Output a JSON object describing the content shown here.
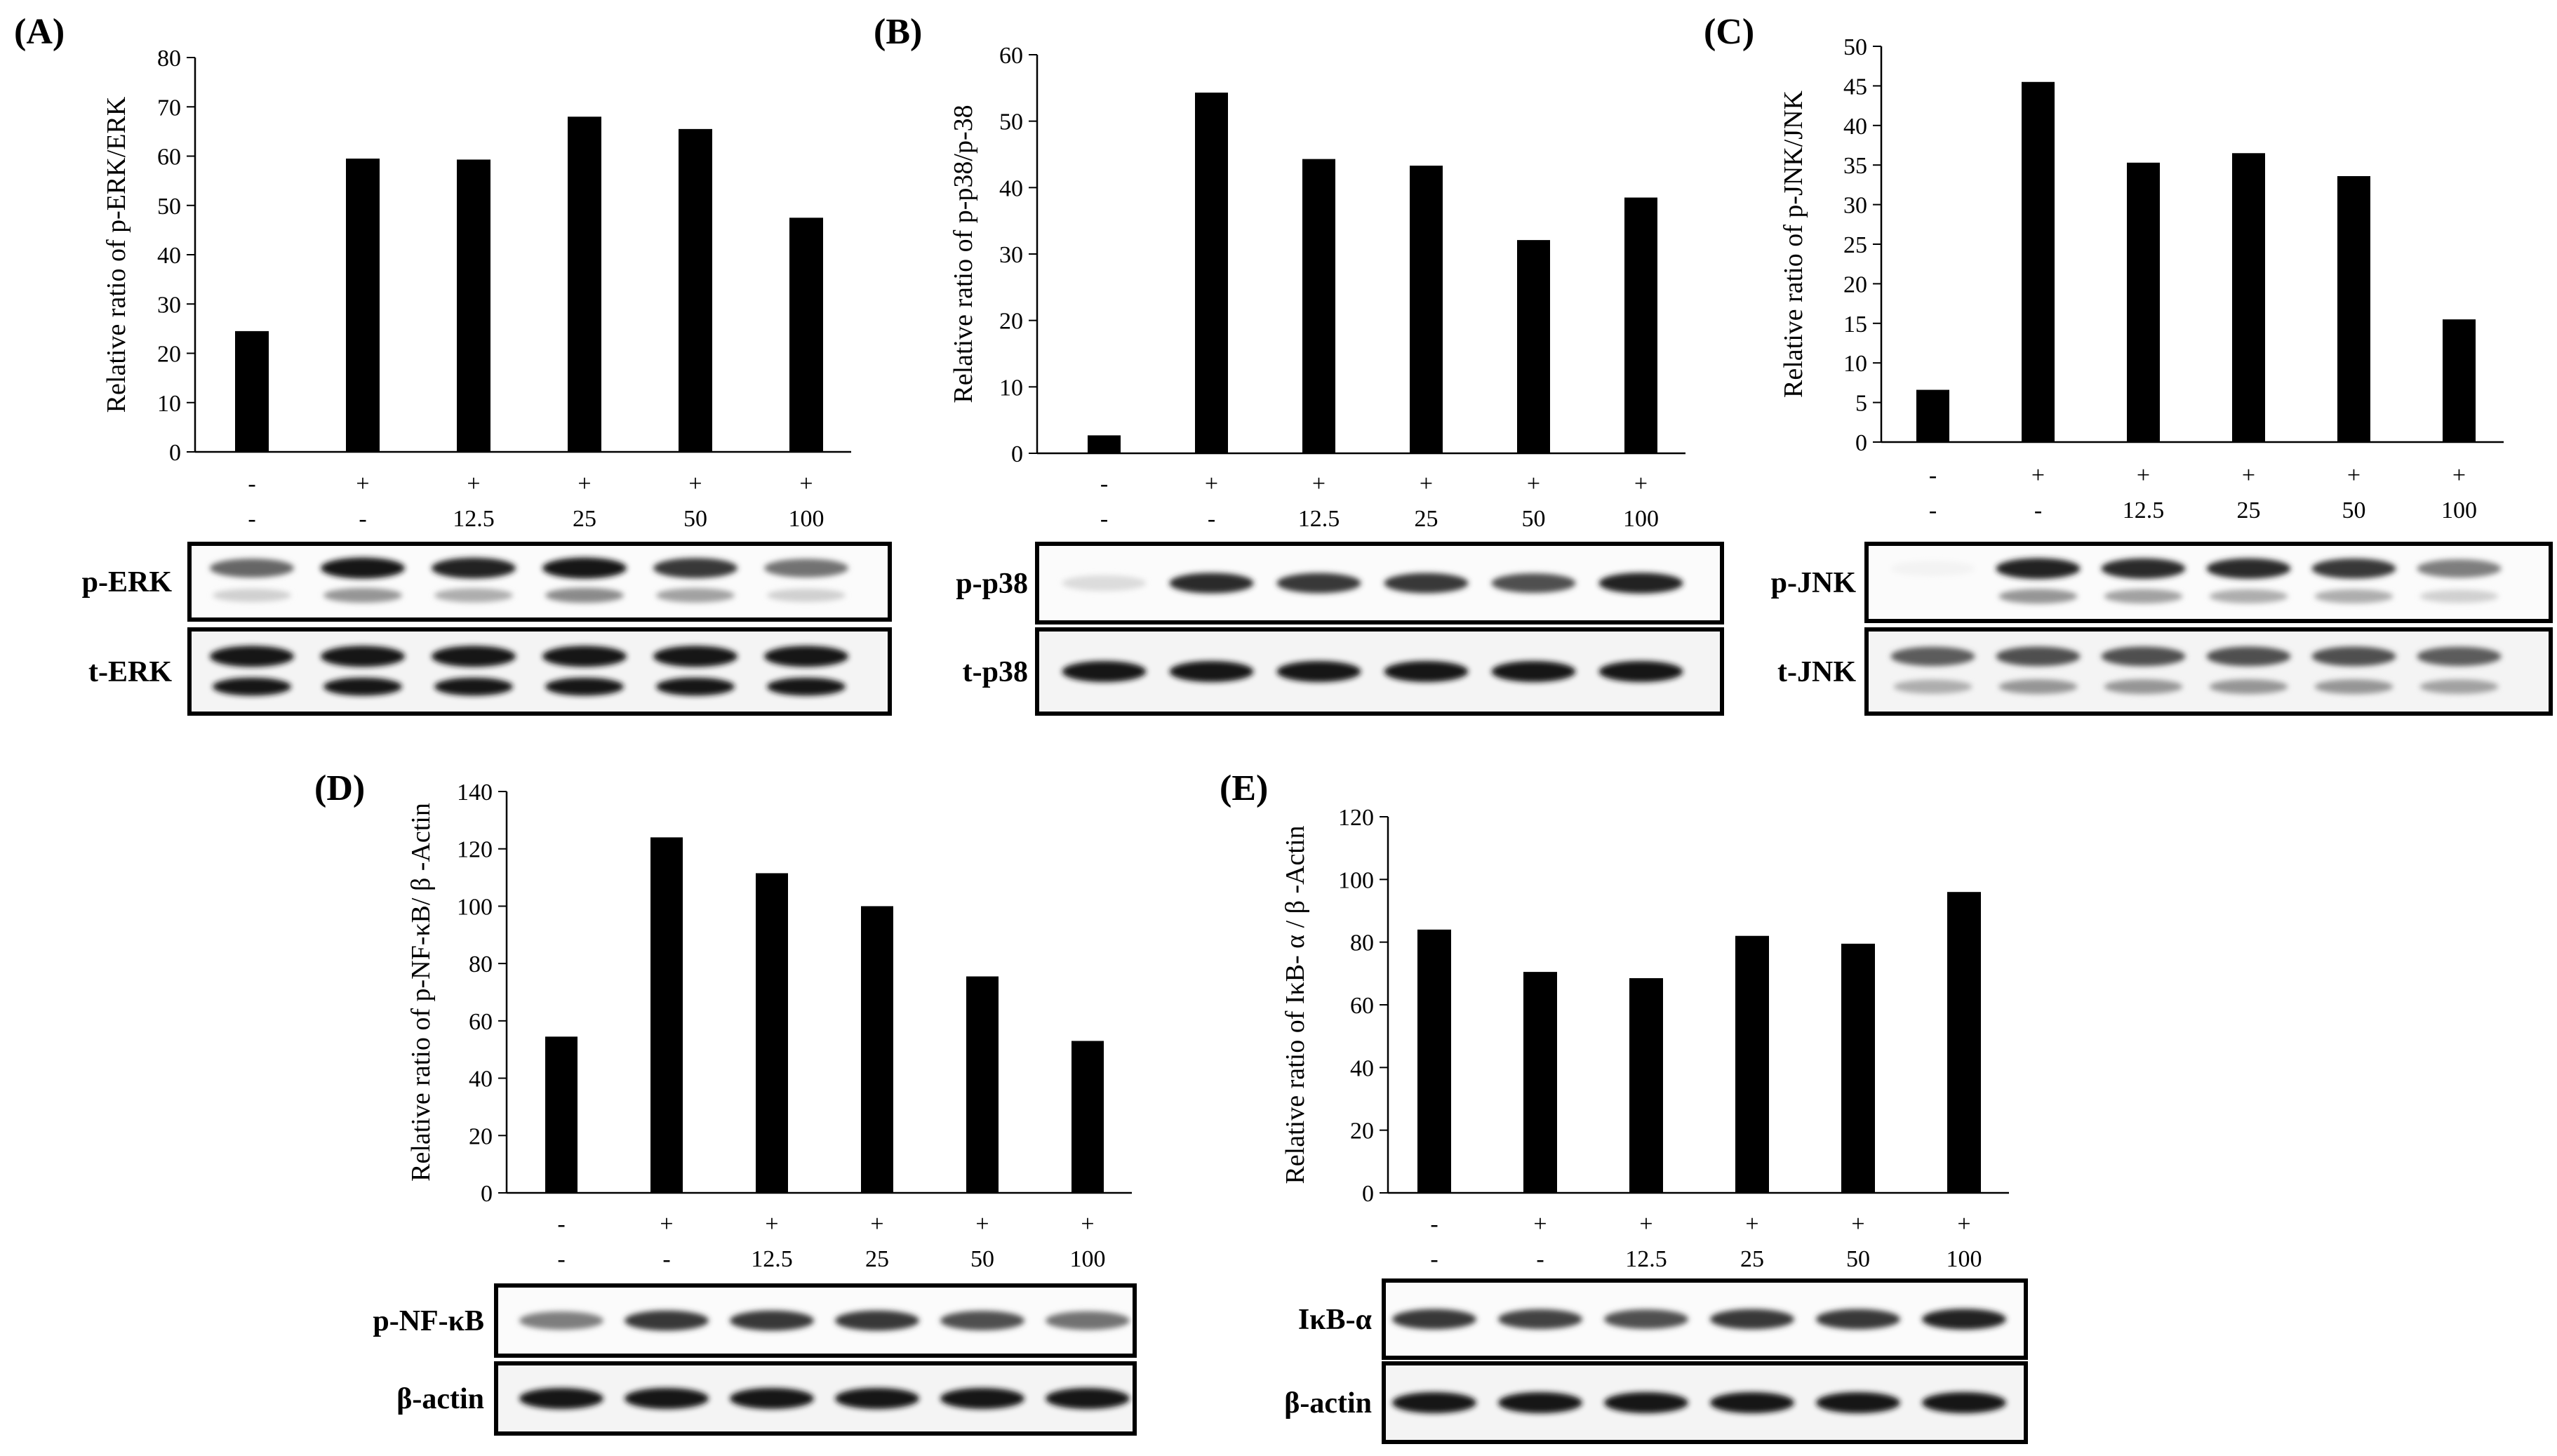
{
  "chart_data": [
    {
      "type": "bar",
      "panel": "(A)",
      "ylabel": "Relative ratio of p-ERK/ERK",
      "ylim": [
        0,
        80
      ],
      "yticks": [
        0,
        10,
        20,
        30,
        40,
        50,
        60,
        70,
        80
      ],
      "row1": [
        "-",
        "+",
        "+",
        "+",
        "+",
        "+"
      ],
      "row2": [
        "-",
        "-",
        "12.5",
        "25",
        "50",
        "100"
      ],
      "values": [
        24.5,
        59.5,
        59.3,
        68,
        65.5,
        47.5
      ],
      "blots": [
        {
          "label": "p-ERK",
          "intensity": [
            0.65,
            1.0,
            0.95,
            1.0,
            0.85,
            0.6
          ],
          "second": [
            0.2,
            0.45,
            0.35,
            0.5,
            0.4,
            0.2
          ]
        },
        {
          "label": "t-ERK",
          "intensity": [
            1,
            1,
            1,
            1,
            1,
            1
          ],
          "second": [
            1,
            1,
            1,
            1,
            1,
            1
          ]
        }
      ]
    },
    {
      "type": "bar",
      "panel": "(B)",
      "ylabel": "Relative ratio of p-p38/p-38",
      "ylim": [
        0,
        60
      ],
      "yticks": [
        0,
        10,
        20,
        30,
        40,
        50,
        60
      ],
      "row1": [
        "-",
        "+",
        "+",
        "+",
        "+",
        "+"
      ],
      "row2": [
        "-",
        "-",
        "12.5",
        "25",
        "50",
        "100"
      ],
      "values": [
        2.7,
        54.3,
        44.3,
        43.3,
        32.1,
        38.5
      ],
      "blots": [
        {
          "label": "p-p38",
          "intensity": [
            0.15,
            0.9,
            0.85,
            0.85,
            0.75,
            0.95
          ]
        },
        {
          "label": "t-p38",
          "intensity": [
            1,
            1,
            1,
            1,
            1,
            1
          ]
        }
      ]
    },
    {
      "type": "bar",
      "panel": "(C)",
      "ylabel": "Relative ratio of p-JNK/JNK",
      "ylim": [
        0,
        50
      ],
      "yticks": [
        0,
        5,
        10,
        15,
        20,
        25,
        30,
        35,
        40,
        45,
        50
      ],
      "row1": [
        "-",
        "+",
        "+",
        "+",
        "+",
        "+"
      ],
      "row2": [
        "-",
        "-",
        "12.5",
        "25",
        "50",
        "100"
      ],
      "values": [
        6.6,
        45.5,
        35.3,
        36.5,
        33.6,
        15.5
      ],
      "blots": [
        {
          "label": "p-JNK",
          "intensity": [
            0.05,
            0.95,
            0.9,
            0.9,
            0.85,
            0.55
          ],
          "second": [
            0,
            0.45,
            0.4,
            0.35,
            0.35,
            0.2
          ]
        },
        {
          "label": "t-JNK",
          "intensity": [
            0.7,
            0.75,
            0.75,
            0.75,
            0.75,
            0.7
          ],
          "second": [
            0.35,
            0.45,
            0.45,
            0.45,
            0.45,
            0.4
          ]
        }
      ]
    },
    {
      "type": "bar",
      "panel": "(D)",
      "ylabel": "Relative ratio of p-NF-κB/ β -Actin",
      "ylim": [
        0,
        140
      ],
      "yticks": [
        0,
        20,
        40,
        60,
        80,
        100,
        120,
        140
      ],
      "row1": [
        "-",
        "+",
        "+",
        "+",
        "+",
        "+"
      ],
      "row2": [
        "-",
        "-",
        "12.5",
        "25",
        "50",
        "100"
      ],
      "values": [
        54.5,
        124,
        111.5,
        100,
        75.5,
        53
      ],
      "blots": [
        {
          "label": "p-NF-κB",
          "intensity": [
            0.55,
            0.85,
            0.85,
            0.85,
            0.75,
            0.6
          ]
        },
        {
          "label": "β-actin",
          "intensity": [
            1,
            1,
            1,
            1,
            1,
            1
          ]
        }
      ]
    },
    {
      "type": "bar",
      "panel": "(E)",
      "ylabel": "Relative ratio of  IκB- α / β -Actin",
      "ylim": [
        0,
        120
      ],
      "yticks": [
        0,
        20,
        40,
        60,
        80,
        100,
        120
      ],
      "row1": [
        "-",
        "+",
        "+",
        "+",
        "+",
        "+"
      ],
      "row2": [
        "-",
        "-",
        "12.5",
        "25",
        "50",
        "100"
      ],
      "values": [
        84,
        70.5,
        68.5,
        82,
        79.5,
        96
      ],
      "blots": [
        {
          "label": "IκB-α",
          "intensity": [
            0.85,
            0.8,
            0.75,
            0.85,
            0.85,
            0.95
          ]
        },
        {
          "label": "β-actin",
          "intensity": [
            1,
            1,
            1,
            1,
            1,
            1
          ]
        }
      ]
    }
  ]
}
